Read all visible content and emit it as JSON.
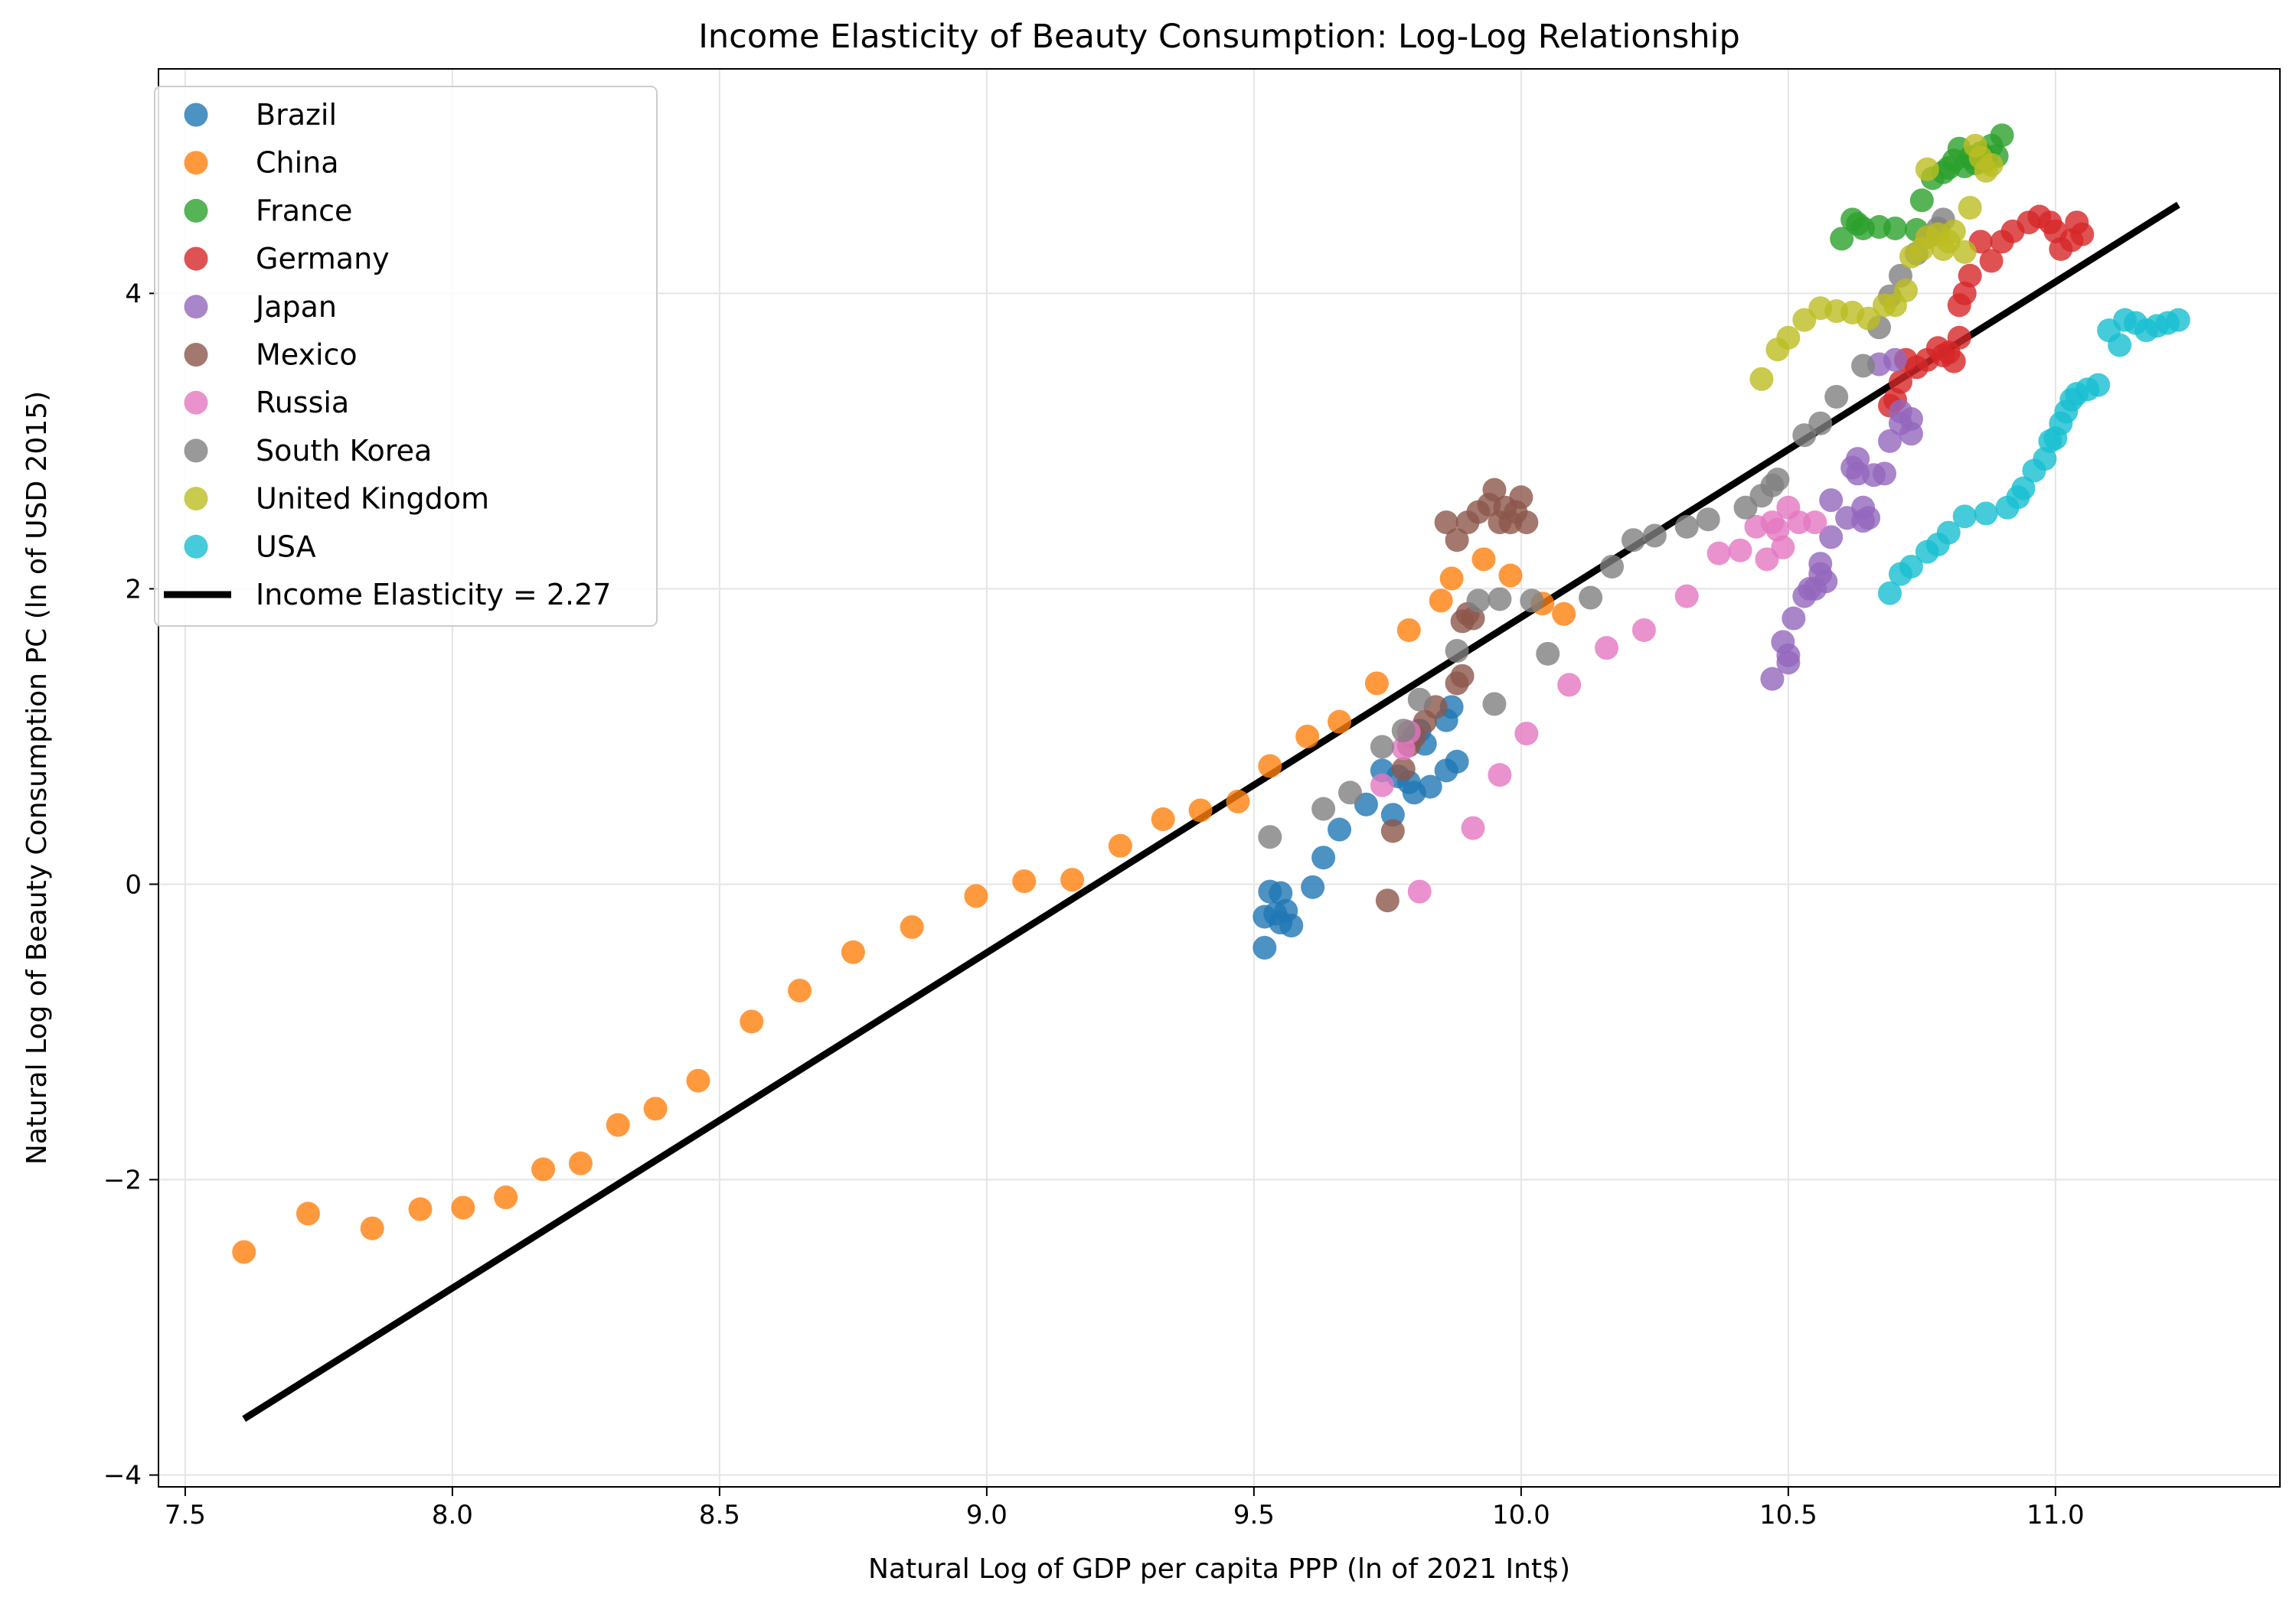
{
  "chart_data": {
    "type": "scatter",
    "title": "Income Elasticity of Beauty Consumption: Log-Log Relationship",
    "xlabel": "Natural Log of GDP per capita PPP (ln of 2021 Int$)",
    "ylabel": "Natural Log of Beauty Consumption PC (ln of USD 2015)",
    "xlim": [
      7.45,
      11.42
    ],
    "ylim": [
      -4.08,
      5.52
    ],
    "xticks": [
      7.5,
      8.0,
      8.5,
      9.0,
      9.5,
      10.0,
      10.5,
      11.0
    ],
    "xtick_labels": [
      "7.5",
      "8.0",
      "8.5",
      "9.0",
      "9.5",
      "10.0",
      "10.5",
      "11.0"
    ],
    "yticks": [
      -4,
      -2,
      0,
      2,
      4
    ],
    "ytick_labels": [
      "−4",
      "−2",
      "0",
      "2",
      "4"
    ],
    "grid": true,
    "legend_position": "upper-left",
    "series": [
      {
        "name": "Brazil",
        "color": "#1f77b4",
        "points": [
          [
            9.52,
            -0.43
          ],
          [
            9.52,
            -0.22
          ],
          [
            9.53,
            -0.05
          ],
          [
            9.54,
            -0.2
          ],
          [
            9.55,
            -0.06
          ],
          [
            9.55,
            -0.26
          ],
          [
            9.56,
            -0.18
          ],
          [
            9.57,
            -0.28
          ],
          [
            9.61,
            -0.02
          ],
          [
            9.63,
            0.18
          ],
          [
            9.66,
            0.37
          ],
          [
            9.71,
            0.54
          ],
          [
            9.74,
            0.77
          ],
          [
            9.76,
            0.47
          ],
          [
            9.77,
            0.73
          ],
          [
            9.79,
            0.69
          ],
          [
            9.8,
            0.62
          ],
          [
            9.81,
            1.04
          ],
          [
            9.82,
            0.95
          ],
          [
            9.83,
            0.66
          ],
          [
            9.86,
            0.77
          ],
          [
            9.86,
            1.11
          ],
          [
            9.87,
            1.2
          ],
          [
            9.88,
            0.83
          ]
        ]
      },
      {
        "name": "China",
        "color": "#ff7f0e",
        "points": [
          [
            7.61,
            -2.49
          ],
          [
            7.73,
            -2.23
          ],
          [
            7.85,
            -2.33
          ],
          [
            7.94,
            -2.2
          ],
          [
            8.02,
            -2.19
          ],
          [
            8.1,
            -2.12
          ],
          [
            8.17,
            -1.93
          ],
          [
            8.24,
            -1.89
          ],
          [
            8.31,
            -1.63
          ],
          [
            8.38,
            -1.52
          ],
          [
            8.46,
            -1.33
          ],
          [
            8.56,
            -0.93
          ],
          [
            8.65,
            -0.72
          ],
          [
            8.75,
            -0.46
          ],
          [
            8.86,
            -0.29
          ],
          [
            8.98,
            -0.08
          ],
          [
            9.07,
            0.02
          ],
          [
            9.16,
            0.03
          ],
          [
            9.25,
            0.26
          ],
          [
            9.33,
            0.44
          ],
          [
            9.4,
            0.5
          ],
          [
            9.47,
            0.56
          ],
          [
            9.53,
            0.8
          ],
          [
            9.6,
            1.0
          ],
          [
            9.66,
            1.1
          ],
          [
            9.73,
            1.36
          ],
          [
            9.79,
            1.72
          ],
          [
            9.85,
            1.92
          ],
          [
            9.87,
            2.07
          ],
          [
            9.93,
            2.2
          ],
          [
            9.98,
            2.09
          ],
          [
            10.04,
            1.9
          ],
          [
            10.08,
            1.83
          ]
        ]
      },
      {
        "name": "France",
        "color": "#2ca02c",
        "points": [
          [
            10.6,
            4.37
          ],
          [
            10.62,
            4.5
          ],
          [
            10.63,
            4.47
          ],
          [
            10.64,
            4.44
          ],
          [
            10.67,
            4.45
          ],
          [
            10.7,
            4.44
          ],
          [
            10.74,
            4.43
          ],
          [
            10.75,
            4.63
          ],
          [
            10.77,
            4.78
          ],
          [
            10.79,
            4.82
          ],
          [
            10.8,
            4.85
          ],
          [
            10.81,
            4.9
          ],
          [
            10.82,
            4.98
          ],
          [
            10.83,
            4.86
          ],
          [
            10.84,
            4.92
          ],
          [
            10.85,
            4.88
          ],
          [
            10.86,
            4.95
          ],
          [
            10.87,
            4.9
          ],
          [
            10.88,
            5.0
          ],
          [
            10.89,
            4.93
          ],
          [
            10.9,
            5.07
          ]
        ]
      },
      {
        "name": "Germany",
        "color": "#d62728",
        "points": [
          [
            10.69,
            3.24
          ],
          [
            10.7,
            3.28
          ],
          [
            10.71,
            3.4
          ],
          [
            10.72,
            3.55
          ],
          [
            10.74,
            3.5
          ],
          [
            10.76,
            3.55
          ],
          [
            10.78,
            3.63
          ],
          [
            10.79,
            3.58
          ],
          [
            10.8,
            3.6
          ],
          [
            10.81,
            3.54
          ],
          [
            10.82,
            3.7
          ],
          [
            10.82,
            3.92
          ],
          [
            10.83,
            4.0
          ],
          [
            10.84,
            4.12
          ],
          [
            10.86,
            4.35
          ],
          [
            10.88,
            4.22
          ],
          [
            10.9,
            4.35
          ],
          [
            10.92,
            4.42
          ],
          [
            10.95,
            4.48
          ],
          [
            10.97,
            4.52
          ],
          [
            10.99,
            4.48
          ],
          [
            11.0,
            4.42
          ],
          [
            11.01,
            4.3
          ],
          [
            11.03,
            4.36
          ],
          [
            11.04,
            4.48
          ],
          [
            11.05,
            4.4
          ]
        ]
      },
      {
        "name": "Japan",
        "color": "#9467bd",
        "points": [
          [
            10.47,
            1.39
          ],
          [
            10.49,
            1.64
          ],
          [
            10.5,
            1.5
          ],
          [
            10.5,
            1.55
          ],
          [
            10.51,
            1.8
          ],
          [
            10.53,
            1.95
          ],
          [
            10.54,
            2.0
          ],
          [
            10.55,
            2.0
          ],
          [
            10.56,
            2.1
          ],
          [
            10.56,
            2.17
          ],
          [
            10.57,
            2.05
          ],
          [
            10.58,
            2.35
          ],
          [
            10.58,
            2.6
          ],
          [
            10.61,
            2.48
          ],
          [
            10.62,
            2.82
          ],
          [
            10.63,
            2.78
          ],
          [
            10.63,
            2.88
          ],
          [
            10.64,
            2.46
          ],
          [
            10.64,
            2.55
          ],
          [
            10.65,
            2.48
          ],
          [
            10.66,
            2.77
          ],
          [
            10.67,
            3.52
          ],
          [
            10.68,
            2.78
          ],
          [
            10.69,
            3.0
          ],
          [
            10.7,
            3.55
          ],
          [
            10.71,
            3.2
          ],
          [
            10.71,
            3.12
          ],
          [
            10.73,
            3.15
          ],
          [
            10.73,
            3.05
          ]
        ]
      },
      {
        "name": "Mexico",
        "color": "#8c564b",
        "points": [
          [
            9.75,
            -0.11
          ],
          [
            9.76,
            0.36
          ],
          [
            9.78,
            0.78
          ],
          [
            9.79,
            0.94
          ],
          [
            9.8,
            1.0
          ],
          [
            9.82,
            1.1
          ],
          [
            9.84,
            1.2
          ],
          [
            9.86,
            2.45
          ],
          [
            9.88,
            1.36
          ],
          [
            9.88,
            2.33
          ],
          [
            9.89,
            1.41
          ],
          [
            9.89,
            1.78
          ],
          [
            9.9,
            1.83
          ],
          [
            9.9,
            2.45
          ],
          [
            9.91,
            1.8
          ],
          [
            9.92,
            2.52
          ],
          [
            9.94,
            2.57
          ],
          [
            9.95,
            2.67
          ],
          [
            9.96,
            2.45
          ],
          [
            9.97,
            2.55
          ],
          [
            9.98,
            2.45
          ],
          [
            9.99,
            2.52
          ],
          [
            10.0,
            2.62
          ],
          [
            10.01,
            2.45
          ]
        ]
      },
      {
        "name": "Russia",
        "color": "#e377c2",
        "points": [
          [
            9.74,
            0.67
          ],
          [
            9.78,
            0.92
          ],
          [
            9.79,
            1.03
          ],
          [
            9.81,
            -0.05
          ],
          [
            9.91,
            0.38
          ],
          [
            9.96,
            0.74
          ],
          [
            10.01,
            1.02
          ],
          [
            10.09,
            1.35
          ],
          [
            10.16,
            1.6
          ],
          [
            10.23,
            1.72
          ],
          [
            10.31,
            1.95
          ],
          [
            10.37,
            2.24
          ],
          [
            10.41,
            2.26
          ],
          [
            10.44,
            2.42
          ],
          [
            10.46,
            2.2
          ],
          [
            10.47,
            2.45
          ],
          [
            10.48,
            2.4
          ],
          [
            10.49,
            2.28
          ],
          [
            10.5,
            2.55
          ],
          [
            10.52,
            2.45
          ],
          [
            10.55,
            2.45
          ]
        ]
      },
      {
        "name": "South Korea",
        "color": "#7f7f7f",
        "points": [
          [
            9.53,
            0.32
          ],
          [
            9.63,
            0.51
          ],
          [
            9.68,
            0.62
          ],
          [
            9.74,
            0.93
          ],
          [
            9.78,
            1.04
          ],
          [
            9.81,
            1.25
          ],
          [
            9.88,
            1.58
          ],
          [
            9.92,
            1.92
          ],
          [
            9.95,
            1.22
          ],
          [
            9.96,
            1.93
          ],
          [
            10.02,
            1.92
          ],
          [
            10.05,
            1.56
          ],
          [
            10.13,
            1.94
          ],
          [
            10.17,
            2.15
          ],
          [
            10.21,
            2.33
          ],
          [
            10.25,
            2.36
          ],
          [
            10.31,
            2.42
          ],
          [
            10.35,
            2.47
          ],
          [
            10.42,
            2.55
          ],
          [
            10.45,
            2.63
          ],
          [
            10.47,
            2.7
          ],
          [
            10.48,
            2.74
          ],
          [
            10.53,
            3.04
          ],
          [
            10.56,
            3.12
          ],
          [
            10.59,
            3.3
          ],
          [
            10.64,
            3.51
          ],
          [
            10.67,
            3.77
          ],
          [
            10.69,
            3.98
          ],
          [
            10.71,
            4.12
          ],
          [
            10.74,
            4.27
          ],
          [
            10.76,
            4.38
          ],
          [
            10.78,
            4.44
          ],
          [
            10.79,
            4.5
          ]
        ]
      },
      {
        "name": "United Kingdom",
        "color": "#bcbd22",
        "points": [
          [
            10.45,
            3.42
          ],
          [
            10.48,
            3.62
          ],
          [
            10.5,
            3.7
          ],
          [
            10.53,
            3.82
          ],
          [
            10.56,
            3.9
          ],
          [
            10.59,
            3.88
          ],
          [
            10.62,
            3.87
          ],
          [
            10.65,
            3.83
          ],
          [
            10.68,
            3.92
          ],
          [
            10.7,
            3.92
          ],
          [
            10.72,
            4.02
          ],
          [
            10.73,
            4.25
          ],
          [
            10.75,
            4.3
          ],
          [
            10.76,
            4.38
          ],
          [
            10.76,
            4.84
          ],
          [
            10.78,
            4.4
          ],
          [
            10.79,
            4.3
          ],
          [
            10.8,
            4.35
          ],
          [
            10.81,
            4.42
          ],
          [
            10.83,
            4.28
          ],
          [
            10.84,
            4.58
          ],
          [
            10.85,
            5.0
          ],
          [
            10.86,
            4.92
          ],
          [
            10.87,
            4.83
          ],
          [
            10.88,
            4.87
          ]
        ]
      },
      {
        "name": "USA",
        "color": "#17becf",
        "points": [
          [
            10.69,
            1.97
          ],
          [
            10.71,
            2.1
          ],
          [
            10.73,
            2.15
          ],
          [
            10.76,
            2.25
          ],
          [
            10.78,
            2.3
          ],
          [
            10.8,
            2.38
          ],
          [
            10.83,
            2.49
          ],
          [
            10.87,
            2.51
          ],
          [
            10.91,
            2.55
          ],
          [
            10.93,
            2.62
          ],
          [
            10.94,
            2.68
          ],
          [
            10.96,
            2.8
          ],
          [
            10.98,
            2.88
          ],
          [
            10.99,
            3.0
          ],
          [
            11.0,
            3.02
          ],
          [
            11.01,
            3.12
          ],
          [
            11.02,
            3.2
          ],
          [
            11.03,
            3.28
          ],
          [
            11.04,
            3.32
          ],
          [
            11.06,
            3.35
          ],
          [
            11.08,
            3.38
          ],
          [
            11.1,
            3.75
          ],
          [
            11.12,
            3.65
          ],
          [
            11.13,
            3.82
          ],
          [
            11.15,
            3.8
          ],
          [
            11.17,
            3.75
          ],
          [
            11.19,
            3.78
          ],
          [
            11.21,
            3.8
          ],
          [
            11.23,
            3.82
          ]
        ]
      }
    ],
    "fit_line": {
      "name": "Income Elasticity = 2.27",
      "color": "#000000",
      "x": [
        7.61,
        11.23
      ],
      "y": [
        -3.62,
        4.6
      ]
    }
  }
}
